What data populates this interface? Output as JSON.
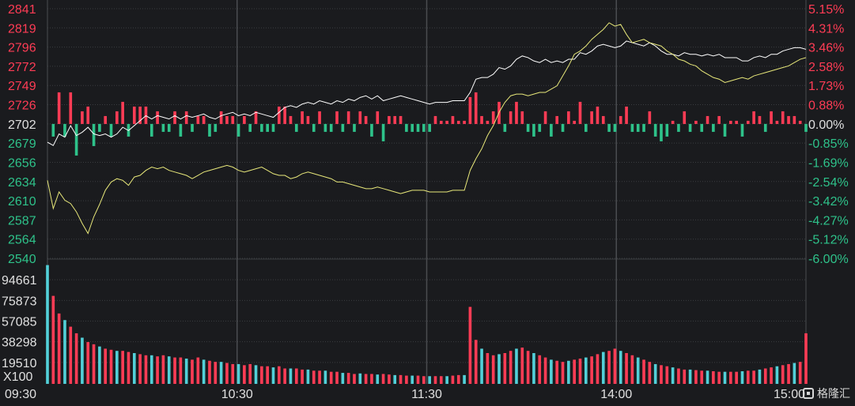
{
  "chart_data": [
    {
      "type": "line",
      "subtype": "intraday-price",
      "left_axis_ticks": [
        "2841",
        "2819",
        "2796",
        "2772",
        "2749",
        "2726",
        "2702",
        "2679",
        "2656",
        "2634",
        "2610",
        "2587",
        "2564",
        "2540"
      ],
      "right_axis_ticks": [
        "5.15%",
        "4.31%",
        "3.46%",
        "2.58%",
        "1.73%",
        "0.88%",
        "0.00%",
        "-0.85%",
        "-1.69%",
        "-2.54%",
        "-3.42%",
        "-4.27%",
        "-5.12%",
        "-6.00%"
      ],
      "ylim": [
        2540,
        2841
      ],
      "prev_close": 2702,
      "colors": {
        "price": "#ffffff",
        "average": "#e8e87a",
        "up": "#ff3c55",
        "down": "#2ec28a",
        "neutral": "#e0e0e0",
        "grid": "#3a3c40",
        "vgrid": "#4a4c50"
      },
      "series": [
        {
          "values": [
            2680,
            2676,
            2690,
            2686,
            2700,
            2688,
            2692,
            2698,
            2690,
            2688,
            2690,
            2686,
            2690,
            2698,
            2694,
            2700,
            2706,
            2712,
            2708,
            2712,
            2710,
            2708,
            2712,
            2708,
            2712,
            2710,
            2712,
            2714,
            2710,
            2708,
            2712,
            2714,
            2716,
            2712,
            2714,
            2712,
            2716,
            2714,
            2712,
            2710,
            2716,
            2722,
            2724,
            2722,
            2726,
            2728,
            2726,
            2730,
            2728,
            2726,
            2730,
            2728,
            2732,
            2730,
            2734,
            2736,
            2732,
            2736,
            2730,
            2732,
            2734,
            2736,
            2734,
            2732,
            2730,
            2728,
            2726,
            2728,
            2728,
            2728,
            2730,
            2730,
            2730,
            2740,
            2756,
            2758,
            2758,
            2762,
            2770,
            2768,
            2772,
            2780,
            2784,
            2782,
            2778,
            2776,
            2780,
            2776,
            2778,
            2776,
            2780,
            2780,
            2788,
            2786,
            2790,
            2796,
            2798,
            2796,
            2794,
            2796,
            2802,
            2800,
            2798,
            2796,
            2800,
            2796,
            2790,
            2786,
            2786,
            2784,
            2788,
            2786,
            2786,
            2784,
            2786,
            2784,
            2786,
            2782,
            2782,
            2782,
            2778,
            2778,
            2782,
            2784,
            2782,
            2786,
            2786,
            2790,
            2792,
            2794,
            2794,
            2792
          ]
        },
        {
          "values": [
            2634,
            2600,
            2620,
            2610,
            2606,
            2596,
            2582,
            2570,
            2590,
            2605,
            2622,
            2632,
            2636,
            2634,
            2628,
            2638,
            2640,
            2646,
            2650,
            2648,
            2650,
            2646,
            2644,
            2642,
            2640,
            2636,
            2640,
            2644,
            2646,
            2648,
            2650,
            2652,
            2650,
            2646,
            2644,
            2646,
            2648,
            2650,
            2646,
            2642,
            2640,
            2640,
            2636,
            2638,
            2642,
            2644,
            2642,
            2640,
            2638,
            2636,
            2632,
            2632,
            2630,
            2628,
            2626,
            2624,
            2624,
            2626,
            2624,
            2622,
            2620,
            2618,
            2620,
            2622,
            2622,
            2622,
            2620,
            2620,
            2620,
            2620,
            2622,
            2622,
            2622,
            2646,
            2660,
            2672,
            2688,
            2700,
            2716,
            2728,
            2736,
            2738,
            2738,
            2736,
            2738,
            2740,
            2740,
            2744,
            2748,
            2760,
            2772,
            2786,
            2790,
            2796,
            2804,
            2810,
            2816,
            2824,
            2820,
            2822,
            2810,
            2800,
            2802,
            2804,
            2800,
            2798,
            2796,
            2790,
            2786,
            2780,
            2778,
            2774,
            2772,
            2766,
            2762,
            2758,
            2756,
            2752,
            2754,
            2756,
            2758,
            2756,
            2760,
            2762,
            2764,
            2766,
            2768,
            2770,
            2772,
            2776,
            2780,
            2782
          ]
        }
      ]
    },
    {
      "type": "bar",
      "subtype": "volume",
      "y_ticks": [
        "94661",
        "75873",
        "57085",
        "38298",
        "19510"
      ],
      "unit_label": "X100",
      "ylim": [
        0,
        113449
      ],
      "x_ticks": [
        "09:30",
        "10:30",
        "11:30",
        "14:00",
        "15:00"
      ],
      "values": [
        108000,
        80000,
        64000,
        58000,
        52000,
        46000,
        42000,
        38000,
        36000,
        34000,
        32000,
        31000,
        30000,
        30000,
        29000,
        28000,
        27000,
        26000,
        26000,
        25000,
        26000,
        25000,
        24000,
        24000,
        23000,
        22000,
        24000,
        22000,
        21000,
        20000,
        20000,
        19000,
        18000,
        18000,
        17000,
        18000,
        17000,
        16000,
        16000,
        15000,
        16000,
        14000,
        14000,
        14000,
        13000,
        13000,
        12000,
        12000,
        12000,
        11000,
        11000,
        10000,
        10000,
        9000,
        9500,
        9000,
        9000,
        8500,
        9000,
        8500,
        8000,
        8000,
        7500,
        7500,
        7500,
        7000,
        7000,
        7000,
        7000,
        7000,
        7500,
        8000,
        8000,
        70000,
        40000,
        32000,
        28000,
        26000,
        27000,
        28000,
        30000,
        32000,
        33000,
        30000,
        28000,
        26000,
        24000,
        22000,
        21000,
        20000,
        21000,
        22000,
        23000,
        24000,
        25000,
        27000,
        29000,
        30000,
        32000,
        30000,
        28000,
        26000,
        24000,
        22000,
        20000,
        18000,
        17000,
        16000,
        15000,
        14000,
        13000,
        13000,
        12500,
        12000,
        12000,
        11500,
        11000,
        11000,
        11000,
        11000,
        11500,
        12000,
        12000,
        13000,
        14000,
        15000,
        16000,
        17000,
        18000,
        19000,
        20000,
        46000
      ]
    }
  ],
  "watermark": {
    "text": "格隆汇"
  }
}
